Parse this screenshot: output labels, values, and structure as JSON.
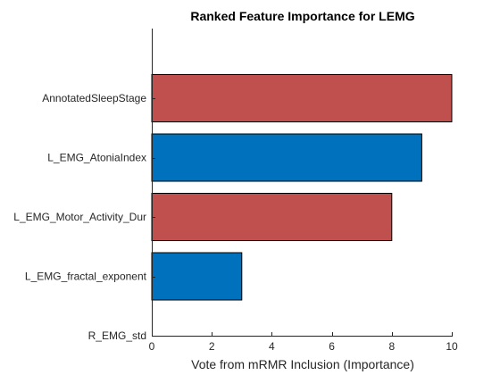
{
  "chart_data": {
    "type": "bar",
    "orientation": "horizontal",
    "title": "Ranked Feature Importance for LEMG",
    "xlabel": "Vote from mRMR Inclusion (Importance)",
    "ylabel": "",
    "categories": [
      "AnnotatedSleepStage",
      "L_EMG_AtoniaIndex",
      "L_EMG_Motor_Activity_Dur",
      "L_EMG_fractal_exponent",
      "R_EMG_std"
    ],
    "values": [
      10,
      9,
      8,
      3,
      0
    ],
    "bar_colors": [
      "#c0504d",
      "#0072bd",
      "#c0504d",
      "#0072bd",
      "#0072bd"
    ],
    "xlim": [
      0,
      10
    ],
    "xticks": [
      "0",
      "2",
      "4",
      "6",
      "8",
      "10"
    ],
    "grid": false,
    "legend": "none"
  }
}
